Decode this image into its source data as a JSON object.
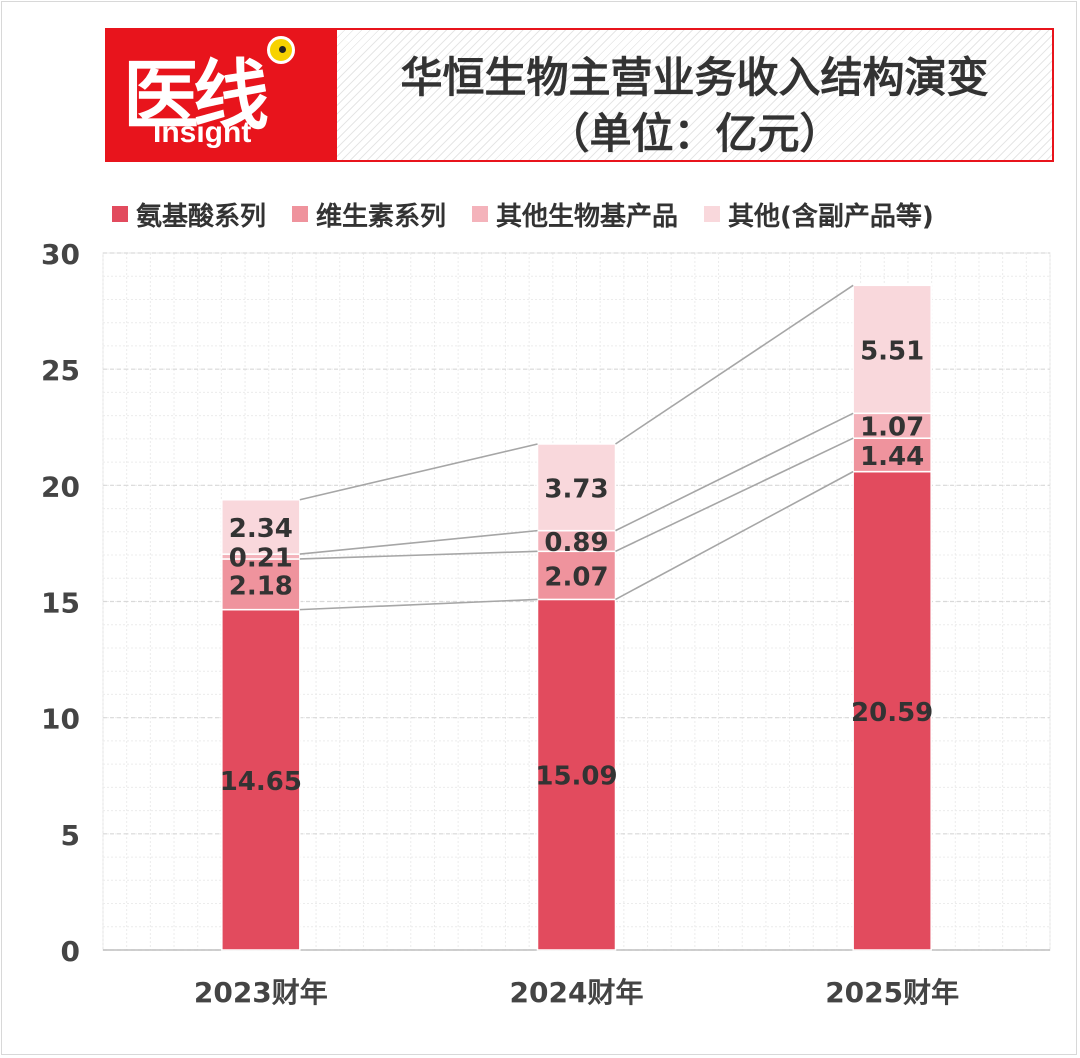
{
  "logo": {
    "cn": "医线",
    "en": "Insight"
  },
  "title": {
    "line1": "华恒生物主营业务收入结构演变",
    "line2": "（单位：亿元）"
  },
  "colors": {
    "brand_red": "#e8141c",
    "grid": "#d9d9d9",
    "connector": "#a6a6a6"
  },
  "chart_data": {
    "type": "bar",
    "stacked": true,
    "categories": [
      "2023财年",
      "2024财年",
      "2025财年"
    ],
    "series": [
      {
        "name": "氨基酸系列",
        "color": "#e24b5e",
        "values": [
          14.65,
          15.09,
          20.59
        ]
      },
      {
        "name": "维生素系列",
        "color": "#ef939d",
        "values": [
          2.18,
          2.07,
          1.44
        ]
      },
      {
        "name": "其他生物基产品",
        "color": "#f4b3bb",
        "values": [
          0.21,
          0.89,
          1.07
        ]
      },
      {
        "name": "其他(含副产品等)",
        "color": "#f9d8dc",
        "values": [
          2.34,
          3.73,
          5.51
        ]
      }
    ],
    "data_labels": [
      [
        "14.65",
        "15.09",
        "20.59"
      ],
      [
        "2.18",
        "2.07",
        "1.44"
      ],
      [
        "0.21",
        "0.89",
        "1.07"
      ],
      [
        "2.34",
        "3.73",
        "5.51"
      ]
    ],
    "y_ticks": [
      "0",
      "5",
      "10",
      "15",
      "20",
      "25",
      "30"
    ],
    "ylim": [
      0,
      30
    ],
    "legend_position": "top",
    "grid": true,
    "connector_lines": true
  }
}
